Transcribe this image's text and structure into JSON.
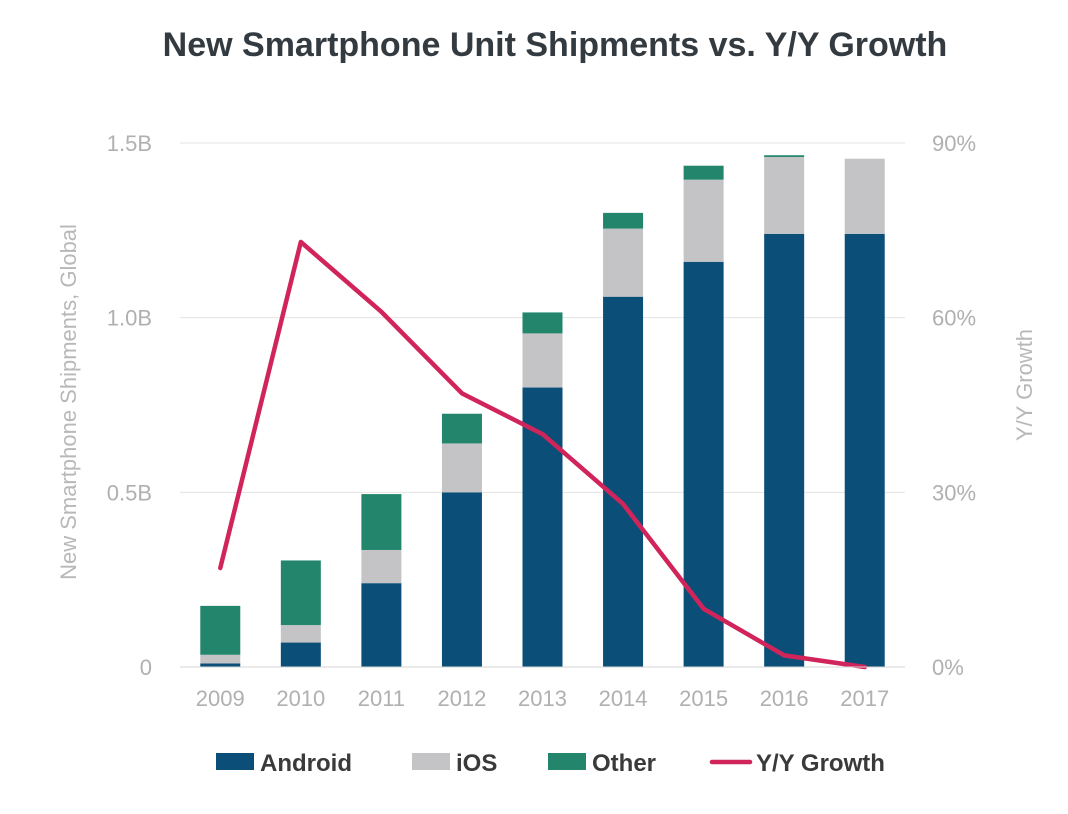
{
  "chart_data": {
    "type": "bar",
    "stacked": true,
    "title": "New Smartphone Unit Shipments vs. Y/Y Growth",
    "ylabel": "New Smartphone Shipments, Global",
    "y2label": "Y/Y Growth",
    "categories": [
      "2009",
      "2010",
      "2011",
      "2012",
      "2013",
      "2014",
      "2015",
      "2016",
      "2017"
    ],
    "ylim": [
      0,
      1.5
    ],
    "y2lim": [
      0,
      90
    ],
    "y_ticks": [
      {
        "value": 0,
        "label": "0"
      },
      {
        "value": 0.5,
        "label": "0.5B"
      },
      {
        "value": 1.0,
        "label": "1.0B"
      },
      {
        "value": 1.5,
        "label": "1.5B"
      }
    ],
    "y2_ticks": [
      {
        "value": 0,
        "label": "0%"
      },
      {
        "value": 30,
        "label": "30%"
      },
      {
        "value": 60,
        "label": "60%"
      },
      {
        "value": 90,
        "label": "90%"
      }
    ],
    "series": [
      {
        "name": "Android",
        "color": "#0b4f78",
        "values": [
          0.01,
          0.07,
          0.24,
          0.5,
          0.8,
          1.06,
          1.16,
          1.24,
          1.24
        ]
      },
      {
        "name": "iOS",
        "color": "#c4c4c6",
        "values": [
          0.025,
          0.05,
          0.095,
          0.14,
          0.155,
          0.195,
          0.235,
          0.22,
          0.215
        ]
      },
      {
        "name": "Other",
        "color": "#23866c",
        "values": [
          0.14,
          0.185,
          0.16,
          0.085,
          0.06,
          0.045,
          0.04,
          0.005,
          0.0
        ]
      }
    ],
    "line_series": {
      "name": "Y/Y Growth",
      "color": "#d0245a",
      "axis": "right",
      "values": [
        17,
        73,
        61,
        47,
        40,
        28,
        10,
        2,
        0
      ]
    },
    "grid": true,
    "legend_position": "bottom"
  }
}
